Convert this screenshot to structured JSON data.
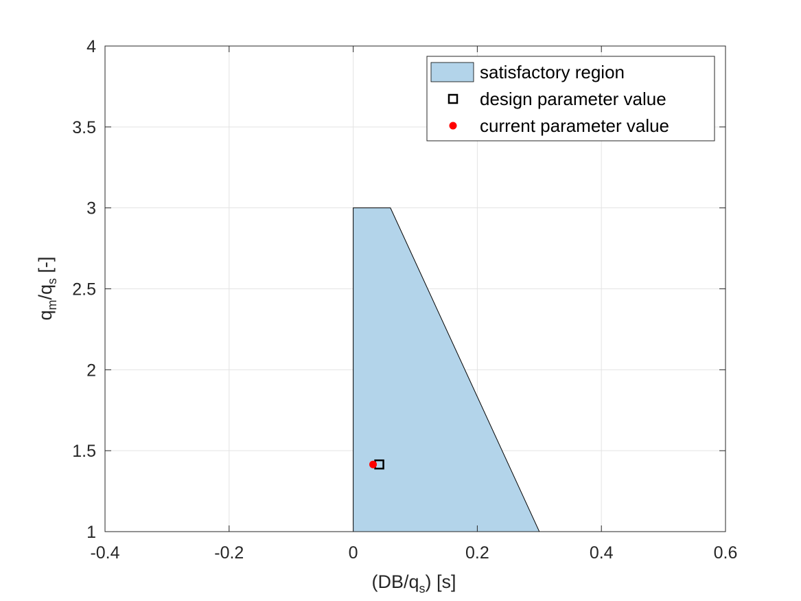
{
  "chart_data": {
    "type": "area",
    "xlabel": {
      "main": "(DB/q",
      "sub": "s",
      "tail": ") [s]"
    },
    "ylabel": {
      "p1": "q",
      "s1": "m",
      "p2": "/q",
      "s2": "s",
      "tail": " [-]"
    },
    "xlim": [
      -0.4,
      0.6
    ],
    "ylim": [
      1,
      4
    ],
    "xticks": [
      -0.4,
      -0.2,
      0,
      0.2,
      0.4,
      0.6
    ],
    "xtick_labels": [
      "-0.4",
      "-0.2",
      "0",
      "0.2",
      "0.4",
      "0.6"
    ],
    "yticks": [
      1,
      1.5,
      2,
      2.5,
      3,
      3.5,
      4
    ],
    "ytick_labels": [
      "1",
      "1.5",
      "2",
      "2.5",
      "3",
      "3.5",
      "4"
    ],
    "grid": true,
    "legend_position": "top-right",
    "series": [
      {
        "name": "satisfactory region",
        "kind": "polygon",
        "color": "#b3d4ea",
        "points": [
          [
            0,
            1
          ],
          [
            0,
            3
          ],
          [
            0.06,
            3
          ],
          [
            0.3,
            1
          ]
        ]
      },
      {
        "name": "design parameter value",
        "kind": "square-marker",
        "color": "#000000",
        "points": [
          [
            0.042,
            1.415
          ]
        ]
      },
      {
        "name": "current parameter value",
        "kind": "dot-marker",
        "color": "#ff0000",
        "points": [
          [
            0.032,
            1.415
          ]
        ]
      }
    ]
  }
}
